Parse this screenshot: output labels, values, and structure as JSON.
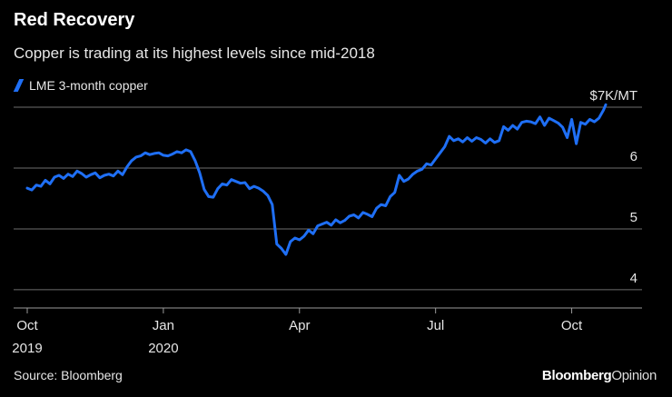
{
  "header": {
    "title": "Red Recovery",
    "subtitle": "Copper is trading at its highest levels since mid-2018"
  },
  "footer": {
    "source": "Source: Bloomberg",
    "brand_bold": "Bloomberg",
    "brand_light": "Opinion"
  },
  "colors": {
    "line": "#1f6ff5",
    "grid": "#6e6e6e",
    "text": "#e6e6e6",
    "background": "#000000"
  },
  "chart_data": {
    "type": "line",
    "title": "Red Recovery",
    "subtitle": "Copper is trading at its highest levels since mid-2018",
    "xlabel": "",
    "ylabel": "",
    "ylim": [
      3.7,
      7.0
    ],
    "xlim": [
      -0.3,
      13.55
    ],
    "yticks": [
      {
        "value": 4,
        "label": "4"
      },
      {
        "value": 5,
        "label": "5"
      },
      {
        "value": 6,
        "label": "6"
      },
      {
        "value": 7,
        "label": "$7K/MT"
      }
    ],
    "xticks": [
      {
        "value": 0,
        "label": "Oct",
        "label2": "2019"
      },
      {
        "value": 3,
        "label": "Jan",
        "label2": "2020"
      },
      {
        "value": 6,
        "label": "Apr",
        "label2": ""
      },
      {
        "value": 9,
        "label": "Jul",
        "label2": ""
      },
      {
        "value": 12,
        "label": "Oct",
        "label2": ""
      }
    ],
    "grid": true,
    "legend": "top-left",
    "series": [
      {
        "name": "LME 3-month copper",
        "x": [
          0.0,
          0.1,
          0.2,
          0.3,
          0.4,
          0.5,
          0.6,
          0.7,
          0.8,
          0.9,
          1.0,
          1.1,
          1.2,
          1.3,
          1.4,
          1.5,
          1.6,
          1.7,
          1.8,
          1.9,
          2.0,
          2.1,
          2.2,
          2.3,
          2.4,
          2.5,
          2.6,
          2.7,
          2.8,
          2.9,
          3.0,
          3.1,
          3.2,
          3.3,
          3.4,
          3.5,
          3.6,
          3.7,
          3.8,
          3.9,
          4.0,
          4.1,
          4.2,
          4.3,
          4.4,
          4.5,
          4.6,
          4.7,
          4.8,
          4.9,
          5.0,
          5.1,
          5.2,
          5.3,
          5.4,
          5.5,
          5.6,
          5.7,
          5.8,
          5.9,
          6.0,
          6.1,
          6.2,
          6.3,
          6.4,
          6.5,
          6.6,
          6.7,
          6.8,
          6.9,
          7.0,
          7.1,
          7.2,
          7.3,
          7.4,
          7.5,
          7.6,
          7.7,
          7.8,
          7.9,
          8.0,
          8.1,
          8.2,
          8.3,
          8.4,
          8.5,
          8.6,
          8.7,
          8.8,
          8.9,
          9.0,
          9.1,
          9.2,
          9.3,
          9.4,
          9.5,
          9.6,
          9.7,
          9.8,
          9.9,
          10.0,
          10.1,
          10.2,
          10.3,
          10.4,
          10.5,
          10.6,
          10.7,
          10.8,
          10.9,
          11.0,
          11.1,
          11.2,
          11.3,
          11.4,
          11.5,
          11.6,
          11.7,
          11.8,
          11.9,
          12.0,
          12.1,
          12.2,
          12.3,
          12.4,
          12.5,
          12.6,
          12.7,
          12.75
        ],
        "values": [
          5.67,
          5.64,
          5.72,
          5.7,
          5.8,
          5.74,
          5.85,
          5.88,
          5.83,
          5.9,
          5.86,
          5.95,
          5.91,
          5.85,
          5.89,
          5.92,
          5.84,
          5.88,
          5.9,
          5.87,
          5.95,
          5.89,
          6.02,
          6.12,
          6.18,
          6.2,
          6.25,
          6.22,
          6.24,
          6.25,
          6.21,
          6.2,
          6.23,
          6.27,
          6.25,
          6.3,
          6.27,
          6.12,
          5.92,
          5.65,
          5.53,
          5.52,
          5.66,
          5.74,
          5.72,
          5.81,
          5.78,
          5.75,
          5.76,
          5.66,
          5.7,
          5.67,
          5.62,
          5.55,
          5.4,
          4.75,
          4.68,
          4.58,
          4.79,
          4.85,
          4.82,
          4.88,
          4.98,
          4.92,
          5.05,
          5.08,
          5.11,
          5.06,
          5.15,
          5.1,
          5.14,
          5.21,
          5.23,
          5.18,
          5.27,
          5.24,
          5.2,
          5.34,
          5.4,
          5.38,
          5.53,
          5.6,
          5.88,
          5.78,
          5.82,
          5.9,
          5.95,
          5.98,
          6.07,
          6.05,
          6.15,
          6.25,
          6.35,
          6.52,
          6.45,
          6.48,
          6.43,
          6.5,
          6.44,
          6.5,
          6.47,
          6.41,
          6.48,
          6.42,
          6.45,
          6.68,
          6.62,
          6.7,
          6.64,
          6.75,
          6.77,
          6.76,
          6.73,
          6.84,
          6.7,
          6.82,
          6.78,
          6.74,
          6.67,
          6.5,
          6.8,
          6.4,
          6.75,
          6.72,
          6.8,
          6.76,
          6.82,
          6.95,
          7.04
        ]
      }
    ]
  }
}
